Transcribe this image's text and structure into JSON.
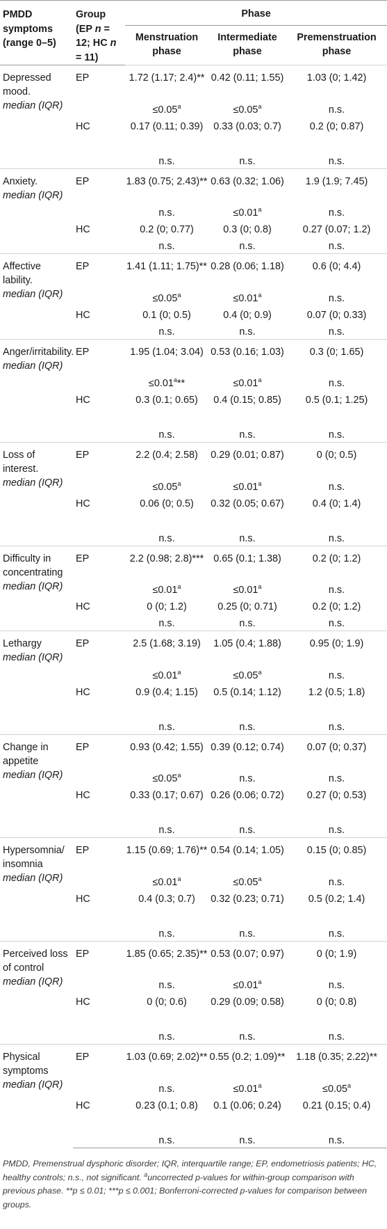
{
  "header": {
    "symptoms_label": "PMDD symptoms (range 0–5)",
    "group_prefix": "Group (EP ",
    "group_n1": "n",
    "group_mid": " = 12; HC ",
    "group_n2": "n",
    "group_suffix": " = 11)",
    "phase_label": "Phase",
    "phases": [
      "Menstruation phase",
      "Intermediate phase",
      "Premenstruation phase"
    ]
  },
  "median_label": "median (IQR)",
  "rows": [
    {
      "symptom": "Depressed mood.",
      "ep": [
        "1.72 (1.17; 2.4)**",
        "0.42 (0.11; 1.55)",
        "1.03 (0; 1.42)"
      ],
      "ep_p": [
        "≤0.05a",
        "≤0.05a",
        "n.s."
      ],
      "hc": [
        "0.17 (0.11; 0.39)",
        "0.33 (0.03; 0.7)",
        "0.2 (0; 0.87)"
      ],
      "hc_p": [
        "n.s.",
        "n.s.",
        "n.s."
      ]
    },
    {
      "symptom": "Anxiety.",
      "ep": [
        "1.83 (0.75; 2.43)**",
        "0.63 (0.32; 1.06)",
        "1.9 (1.9; 7.45)"
      ],
      "ep_p": [
        "n.s.",
        "≤0.01a",
        "n.s."
      ],
      "hc": [
        "0.2 (0; 0.77)",
        "0.3 (0; 0.8)",
        "0.27 (0.07; 1.2)"
      ],
      "hc_p": [
        "n.s.",
        "n.s.",
        "n.s."
      ]
    },
    {
      "symptom": "Affective lability.",
      "ep": [
        "1.41 (1.11; 1.75)**",
        "0.28 (0.06; 1.18)",
        "0.6 (0; 4.4)"
      ],
      "ep_p": [
        "≤0.05a",
        "≤0.01a",
        "n.s."
      ],
      "hc": [
        "0.1 (0; 0.5)",
        "0.4 (0; 0.9)",
        "0.07 (0; 0.33)"
      ],
      "hc_p": [
        "n.s.",
        "n.s.",
        "n.s."
      ]
    },
    {
      "symptom": "Anger/irritability.",
      "ep": [
        "1.95 (1.04; 3.04)",
        "0.53 (0.16; 1.03)",
        "0.3 (0; 1.65)"
      ],
      "ep_p": [
        "≤0.01a**",
        "≤0.01a",
        "n.s."
      ],
      "hc": [
        "0.3 (0.1; 0.65)",
        "0.4 (0.15; 0.85)",
        "0.5 (0.1; 1.25)"
      ],
      "hc_p": [
        "n.s.",
        "n.s.",
        "n.s."
      ]
    },
    {
      "symptom": "Loss of interest.",
      "ep": [
        "2.2 (0.4; 2.58)",
        "0.29 (0.01; 0.87)",
        "0 (0; 0.5)"
      ],
      "ep_p": [
        "≤0.05a",
        "≤0.01a",
        "n.s."
      ],
      "hc": [
        "0.06 (0; 0.5)",
        "0.32 (0.05; 0.67)",
        "0.4 (0; 1.4)"
      ],
      "hc_p": [
        "n.s.",
        "n.s.",
        "n.s."
      ]
    },
    {
      "symptom": "Difficulty in concentrating",
      "ep": [
        "2.2 (0.98; 2.8)***",
        "0.65 (0.1; 1.38)",
        "0.2 (0; 1.2)"
      ],
      "ep_p": [
        "≤0.01a",
        "≤0.01a",
        "n.s."
      ],
      "hc": [
        "0 (0; 1.2)",
        "0.25 (0; 0.71)",
        "0.2 (0; 1.2)"
      ],
      "hc_p": [
        "n.s.",
        "n.s.",
        "n.s."
      ]
    },
    {
      "symptom": "Lethargy",
      "ep": [
        "2.5 (1.68; 3.19)",
        "1.05 (0.4; 1.88)",
        "0.95 (0; 1.9)"
      ],
      "ep_p": [
        "≤0.01a",
        "≤0.05a",
        "n.s."
      ],
      "hc": [
        "0.9 (0.4; 1.15)",
        "0.5 (0.14; 1.12)",
        "1.2 (0.5; 1.8)"
      ],
      "hc_p": [
        "n.s.",
        "n.s.",
        "n.s."
      ]
    },
    {
      "symptom": "Change in appetite",
      "ep": [
        "0.93 (0.42; 1.55)",
        "0.39 (0.12; 0.74)",
        "0.07 (0; 0.37)"
      ],
      "ep_p": [
        "≤0.05a",
        "n.s.",
        "n.s."
      ],
      "hc": [
        "0.33 (0.17; 0.67)",
        "0.26 (0.06; 0.72)",
        "0.27 (0; 0.53)"
      ],
      "hc_p": [
        "n.s.",
        "n.s.",
        "n.s."
      ]
    },
    {
      "symptom": "Hypersomnia/ insomnia",
      "ep": [
        "1.15 (0.69; 1.76)**",
        "0.54 (0.14; 1.05)",
        "0.15 (0; 0.85)"
      ],
      "ep_p": [
        "≤0.01a",
        "≤0.05a",
        "n.s."
      ],
      "hc": [
        "0.4 (0.3; 0.7)",
        "0.32 (0.23; 0.71)",
        "0.5 (0.2; 1.4)"
      ],
      "hc_p": [
        "n.s.",
        "n.s.",
        "n.s."
      ]
    },
    {
      "symptom": "Perceived loss of control",
      "ep": [
        "1.85 (0.65; 2.35)**",
        "0.53 (0.07; 0.97)",
        "0 (0; 1.9)"
      ],
      "ep_p": [
        "n.s.",
        "≤0.01a",
        "n.s."
      ],
      "hc": [
        "0 (0; 0.6)",
        "0.29 (0.09; 0.58)",
        "0 (0; 0.8)"
      ],
      "hc_p": [
        "n.s.",
        "n.s.",
        "n.s."
      ]
    },
    {
      "symptom": "Physical symptoms",
      "ep": [
        "1.03 (0.69; 2.02)**",
        "0.55 (0.2; 1.09)**",
        "1.18 (0.35; 2.22)**"
      ],
      "ep_p": [
        "n.s.",
        "≤0.01a",
        "≤0.05a"
      ],
      "hc": [
        "0.23 (0.1; 0.8)",
        "0.1 (0.06; 0.24)",
        "0.21 (0.15; 0.4)"
      ],
      "hc_p": [
        "n.s.",
        "n.s.",
        "n.s."
      ]
    }
  ],
  "groups": {
    "ep": "EP",
    "hc": "HC"
  },
  "footnote": {
    "main": "PMDD, Premenstrual dysphoric disorder; IQR, interquartile range; EP, endometriosis patients; HC, healthy controls; n.s., not significant. ",
    "a_mark": "a",
    "a_text": "uncorrected p-values for within-group comparison with previous phase. ",
    "p_text": "**p ≤ 0.01; ***p ≤ 0.001; Bonferroni-corrected p-values for comparison between groups."
  }
}
